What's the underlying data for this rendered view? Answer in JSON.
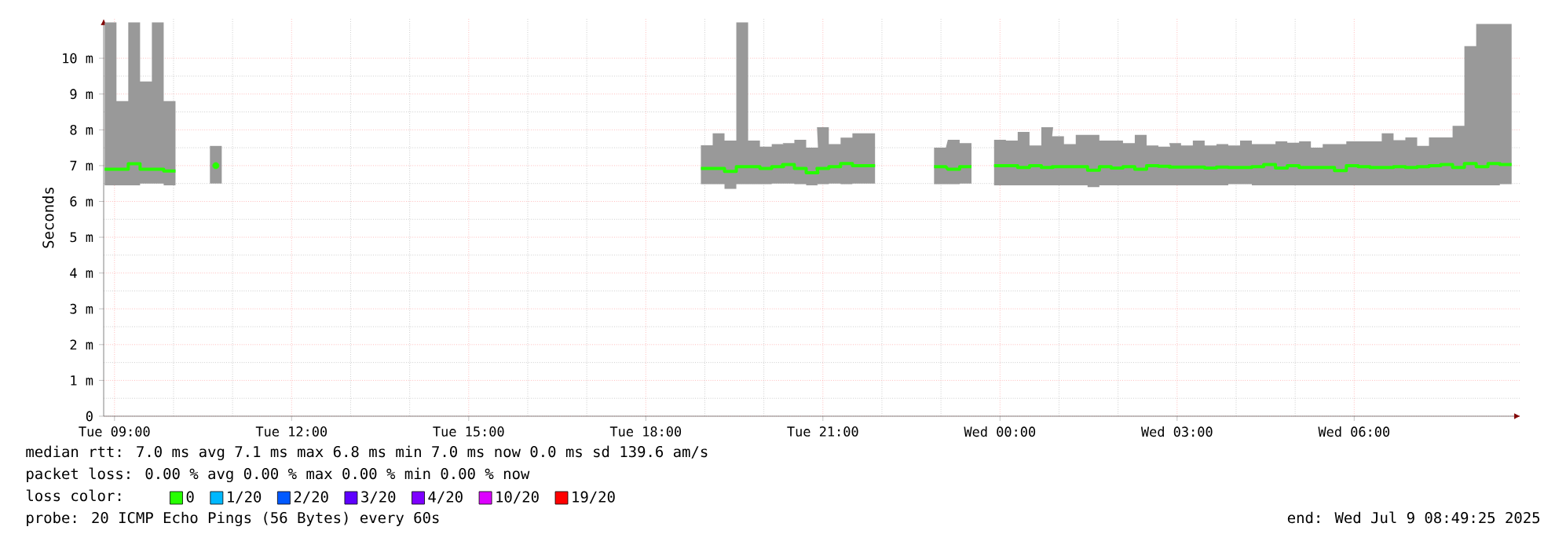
{
  "chart_data": {
    "type": "step",
    "ylabel": "Seconds",
    "xlim": [
      "2025-07-08T08:49",
      "2025-07-09T08:49"
    ],
    "xticks": [
      {
        "value": "2025-07-08T09:00",
        "label": "Tue 09:00"
      },
      {
        "value": "2025-07-08T12:00",
        "label": "Tue 12:00"
      },
      {
        "value": "2025-07-08T15:00",
        "label": "Tue 15:00"
      },
      {
        "value": "2025-07-08T18:00",
        "label": "Tue 18:00"
      },
      {
        "value": "2025-07-08T21:00",
        "label": "Tue 21:00"
      },
      {
        "value": "2025-07-09T00:00",
        "label": "Wed 00:00"
      },
      {
        "value": "2025-07-09T03:00",
        "label": "Wed 03:00"
      },
      {
        "value": "2025-07-09T06:00",
        "label": "Wed 06:00"
      }
    ],
    "ylim": [
      0,
      11.1
    ],
    "yticks": [
      0,
      {
        "value": 1,
        "label": "1 m"
      },
      {
        "value": 2,
        "label": "2 m"
      },
      {
        "value": 3,
        "label": "3 m"
      },
      {
        "value": 4,
        "label": "4 m"
      },
      {
        "value": 5,
        "label": "5 m"
      },
      {
        "value": 6,
        "label": "6 m"
      },
      {
        "value": 7,
        "label": "7 m"
      },
      {
        "value": 8,
        "label": "8 m"
      },
      {
        "value": 9,
        "label": "9 m"
      },
      {
        "value": 10,
        "label": "10 m"
      }
    ],
    "grid": true,
    "legend": "bottom",
    "legend_title": "loss color:",
    "series": [
      {
        "name": "0",
        "color": "#26ff00",
        "x": [
          "2025-07-08T08:56",
          "2025-07-08T09:08",
          "2025-07-08T09:20",
          "2025-07-08T09:32",
          "2025-07-08T09:44",
          "2025-07-08T09:56",
          "2025-07-08T10:18",
          "2025-07-08T10:43",
          "2025-07-08T11:00",
          "2025-07-08T19:02",
          "2025-07-08T19:14",
          "2025-07-08T19:26",
          "2025-07-08T19:38",
          "2025-07-08T19:50",
          "2025-07-08T20:02",
          "2025-07-08T20:14",
          "2025-07-08T20:25",
          "2025-07-08T20:37",
          "2025-07-08T20:49",
          "2025-07-08T21:00",
          "2025-07-08T21:12",
          "2025-07-08T21:24",
          "2025-07-08T21:36",
          "2025-07-08T21:47",
          "2025-07-08T22:18",
          "2025-07-08T22:59",
          "2025-07-08T23:13",
          "2025-07-08T23:25",
          "2025-07-08T23:42",
          "2025-07-09T00:00",
          "2025-07-09T00:12",
          "2025-07-09T00:24",
          "2025-07-09T00:36",
          "2025-07-09T00:48",
          "2025-07-09T00:59",
          "2025-07-09T01:11",
          "2025-07-09T01:23",
          "2025-07-09T01:35",
          "2025-07-09T01:47",
          "2025-07-09T01:59",
          "2025-07-09T02:11",
          "2025-07-09T02:23",
          "2025-07-09T02:35",
          "2025-07-09T02:47",
          "2025-07-09T02:58",
          "2025-07-09T03:10",
          "2025-07-09T03:22",
          "2025-07-09T03:34",
          "2025-07-09T03:46",
          "2025-07-09T03:58",
          "2025-07-09T04:10",
          "2025-07-09T04:22",
          "2025-07-09T04:34",
          "2025-07-09T04:46",
          "2025-07-09T04:58",
          "2025-07-09T05:10",
          "2025-07-09T05:22",
          "2025-07-09T05:34",
          "2025-07-09T05:46",
          "2025-07-09T05:58",
          "2025-07-09T06:10",
          "2025-07-09T06:22",
          "2025-07-09T06:34",
          "2025-07-09T06:46",
          "2025-07-09T06:58",
          "2025-07-09T07:10",
          "2025-07-09T07:22",
          "2025-07-09T07:34",
          "2025-07-09T07:46",
          "2025-07-09T07:58",
          "2025-07-09T08:10",
          "2025-07-09T08:22",
          "2025-07-09T08:34"
        ],
        "values": [
          6.9,
          6.9,
          7.05,
          6.9,
          6.9,
          6.85,
          null,
          7.0,
          null,
          6.92,
          6.92,
          6.84,
          6.97,
          6.97,
          6.92,
          6.97,
          7.03,
          6.92,
          6.8,
          6.92,
          6.97,
          7.06,
          7.0,
          7.0,
          null,
          6.97,
          6.9,
          6.97,
          null,
          7.0,
          7.0,
          6.95,
          7.0,
          6.95,
          6.97,
          6.97,
          6.97,
          6.87,
          6.97,
          6.93,
          6.97,
          6.9,
          7.0,
          6.98,
          6.96,
          6.96,
          6.96,
          6.93,
          6.96,
          6.95,
          6.95,
          6.97,
          7.03,
          6.93,
          7.0,
          6.95,
          6.95,
          6.95,
          6.86,
          7.0,
          6.97,
          6.95,
          6.95,
          6.97,
          6.95,
          6.97,
          7.0,
          7.03,
          6.95,
          7.06,
          6.97,
          7.06,
          7.03
        ],
        "upper": [
          11.0,
          8.8,
          11.0,
          9.35,
          11.0,
          8.8,
          null,
          7.55,
          null,
          7.57,
          7.9,
          7.7,
          11.0,
          7.7,
          7.53,
          7.6,
          7.63,
          7.72,
          7.5,
          8.07,
          7.6,
          7.78,
          7.9,
          7.9,
          null,
          7.5,
          7.72,
          7.63,
          null,
          7.72,
          7.7,
          7.94,
          7.56,
          8.07,
          7.82,
          7.6,
          7.86,
          7.86,
          7.7,
          7.7,
          7.63,
          7.86,
          7.56,
          7.53,
          7.63,
          7.56,
          7.7,
          7.56,
          7.6,
          7.56,
          7.7,
          7.6,
          7.6,
          7.68,
          7.64,
          7.68,
          7.5,
          7.6,
          7.6,
          7.68,
          7.68,
          7.68,
          7.9,
          7.71,
          7.79,
          7.55,
          7.79,
          7.79,
          8.11,
          10.34,
          10.96,
          10.96,
          10.96
        ],
        "lower": [
          6.45,
          6.45,
          6.45,
          6.5,
          6.5,
          6.45,
          null,
          6.5,
          null,
          6.48,
          6.48,
          6.35,
          6.48,
          6.48,
          6.48,
          6.5,
          6.5,
          6.48,
          6.45,
          6.48,
          6.5,
          6.48,
          6.5,
          6.5,
          null,
          6.48,
          6.48,
          6.5,
          null,
          6.45,
          6.45,
          6.45,
          6.45,
          6.45,
          6.45,
          6.45,
          6.45,
          6.4,
          6.45,
          6.45,
          6.45,
          6.45,
          6.45,
          6.45,
          6.45,
          6.45,
          6.45,
          6.45,
          6.45,
          6.48,
          6.48,
          6.45,
          6.45,
          6.45,
          6.45,
          6.45,
          6.45,
          6.45,
          6.45,
          6.45,
          6.45,
          6.45,
          6.45,
          6.45,
          6.45,
          6.45,
          6.45,
          6.45,
          6.45,
          6.45,
          6.45,
          6.45,
          6.48
        ]
      },
      {
        "name": "1/20",
        "color": "#00b8ff"
      },
      {
        "name": "2/20",
        "color": "#0059ff"
      },
      {
        "name": "3/20",
        "color": "#5e00ff"
      },
      {
        "name": "4/20",
        "color": "#7e00ff"
      },
      {
        "name": "10/20",
        "color": "#dd00ff"
      },
      {
        "name": "19/20",
        "color": "#ff0000"
      }
    ],
    "annotations": [
      "median rtt:  7.0 ms avg  7.1 ms max  6.8 ms min  7.0 ms now  0.0 ms sd  139.6   am/s",
      "packet loss: 0.00 % avg  0.00 % max  0.00 % min  0.00 % now",
      "probe:       20 ICMP Echo Pings (56 Bytes) every 60s",
      "end: Wed Jul  9 08:49:25 2025"
    ]
  }
}
